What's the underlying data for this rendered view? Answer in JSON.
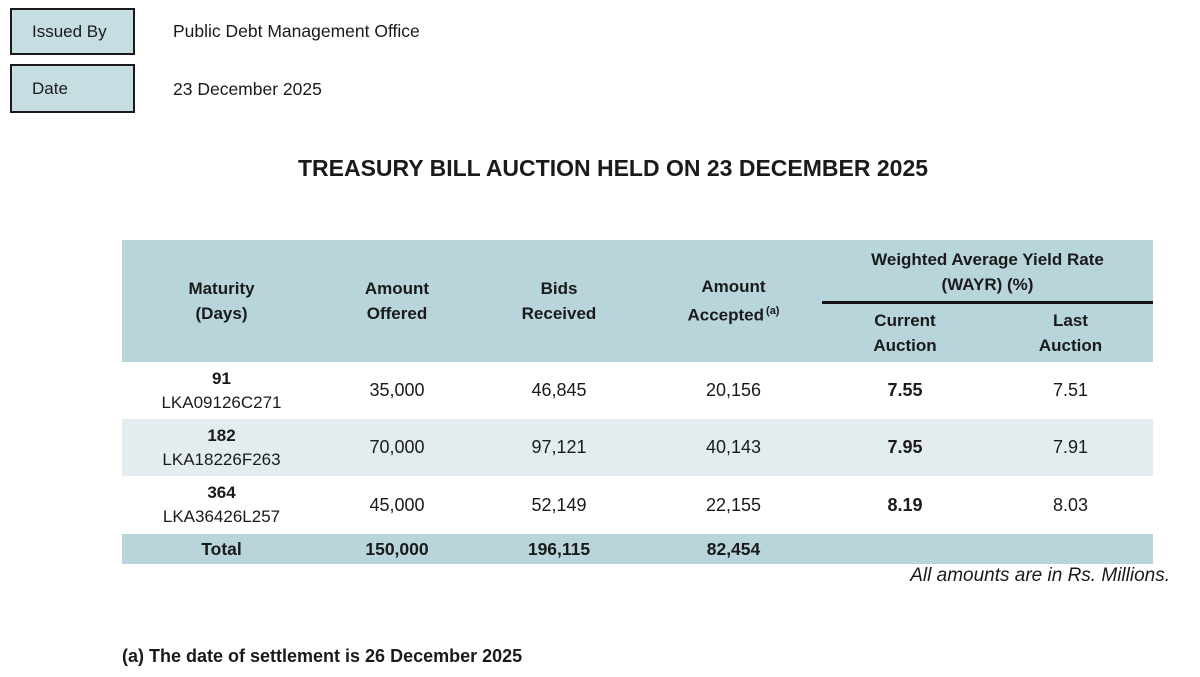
{
  "meta": {
    "issued_by_label": "Issued By",
    "issued_by_value": "Public Debt Management Office",
    "date_label": "Date",
    "date_value": "23 December 2025"
  },
  "title": "TREASURY BILL AUCTION HELD ON 23 DECEMBER 2025",
  "table": {
    "headers": [
      {
        "line1": "Maturity",
        "line2": "(Days)"
      },
      {
        "line1": "Amount",
        "line2": "Offered"
      },
      {
        "line1": "Bids",
        "line2": "Received"
      },
      {
        "line1": "Amount",
        "line2": "Accepted",
        "superscript": "(a)"
      }
    ],
    "wayr_group": {
      "title_line1": "Weighted Average Yield Rate",
      "title_line2": "(WAYR) (%)",
      "sub_headers": [
        {
          "line1": "Current",
          "line2": "Auction"
        },
        {
          "line1": "Last",
          "line2": "Auction"
        }
      ]
    },
    "rows": [
      {
        "maturity_days": "91",
        "isin": "LKA09126C271",
        "amount_offered": "35,000",
        "bids_received": "46,845",
        "amount_accepted": "20,156",
        "wayr_current": "7.55",
        "wayr_last": "7.51"
      },
      {
        "maturity_days": "182",
        "isin": "LKA18226F263",
        "amount_offered": "70,000",
        "bids_received": "97,121",
        "amount_accepted": "40,143",
        "wayr_current": "7.95",
        "wayr_last": "7.91"
      },
      {
        "maturity_days": "364",
        "isin": "LKA36426L257",
        "amount_offered": "45,000",
        "bids_received": "52,149",
        "amount_accepted": "22,155",
        "wayr_current": "8.19",
        "wayr_last": "8.03"
      }
    ],
    "total": {
      "label": "Total",
      "amount_offered": "150,000",
      "bids_received": "196,115",
      "amount_accepted": "82,454",
      "wayr_current": "",
      "wayr_last": ""
    }
  },
  "amounts_note": "All amounts are in Rs. Millions.",
  "footnote": "(a) The date of settlement is 26 December 2025",
  "colors": {
    "header_bg": "#b9d5dc",
    "stripe_bg": "#e3edf0",
    "box_bg": "#c6dde2",
    "divider": "#111111",
    "text": "#1a1a1a"
  }
}
